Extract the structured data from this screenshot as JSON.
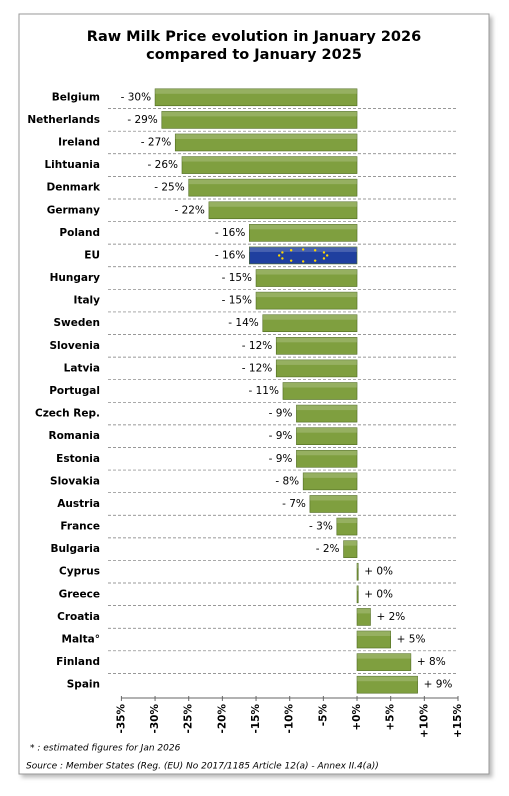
{
  "chart_data": {
    "type": "bar",
    "orientation": "horizontal",
    "title": [
      "Raw Milk Price evolution in January 2026",
      "compared to January 2025"
    ],
    "categories": [
      "Belgium",
      "Netherlands",
      "Ireland",
      "Lihtuania",
      "Denmark",
      "Germany",
      "Poland",
      "EU",
      "Hungary",
      "Italy",
      "Sweden",
      "Slovenia",
      "Latvia",
      "Portugal",
      "Czech Rep.",
      "Romania",
      "Estonia",
      "Slovakia",
      "Austria",
      "France",
      "Bulgaria",
      "Cyprus",
      "Greece",
      "Croatia",
      "Malta°",
      "Finland",
      "Spain"
    ],
    "values": [
      -30,
      -29,
      -27,
      -26,
      -25,
      -22,
      -16,
      -16,
      -15,
      -15,
      -14,
      -12,
      -12,
      -11,
      -9,
      -9,
      -9,
      -8,
      -7,
      -3,
      -2,
      0,
      0,
      2,
      5,
      8,
      9
    ],
    "value_labels": [
      "- 30%",
      "- 29%",
      "- 27%",
      "- 26%",
      "- 25%",
      "- 22%",
      "- 16%",
      "- 16%",
      "- 15%",
      "- 15%",
      "- 14%",
      "- 12%",
      "- 12%",
      "- 11%",
      "- 9%",
      "- 9%",
      "- 9%",
      "- 8%",
      "- 7%",
      "- 3%",
      "- 2%",
      "+ 0%",
      "+ 0%",
      "+ 2%",
      "+ 5%",
      "+ 8%",
      "+ 9%"
    ],
    "color": "#7f9f3f",
    "colors": [
      "#7f9f3f",
      "#7f9f3f",
      "#7f9f3f",
      "#7f9f3f",
      "#7f9f3f",
      "#7f9f3f",
      "#7f9f3f",
      "#1f3f9f",
      "#7f9f3f",
      "#7f9f3f",
      "#7f9f3f",
      "#7f9f3f",
      "#7f9f3f",
      "#7f9f3f",
      "#7f9f3f",
      "#7f9f3f",
      "#7f9f3f",
      "#7f9f3f",
      "#7f9f3f",
      "#7f9f3f",
      "#7f9f3f",
      "#7f9f3f",
      "#7f9f3f",
      "#7f9f3f",
      "#7f9f3f",
      "#7f9f3f",
      "#7f9f3f"
    ],
    "xlim": [
      -35,
      15
    ],
    "xticks": [
      {
        "value": -35,
        "label": "-35%"
      },
      {
        "value": -30,
        "label": "-30%"
      },
      {
        "value": -25,
        "label": "-25%"
      },
      {
        "value": -20,
        "label": "-20%"
      },
      {
        "value": -15,
        "label": "-15%"
      },
      {
        "value": -10,
        "label": "-10%"
      },
      {
        "value": -5,
        "label": "-5%"
      },
      {
        "value": 0,
        "label": "+0%"
      },
      {
        "value": 5,
        "label": "+5%"
      },
      {
        "value": 10,
        "label": "+10%"
      },
      {
        "value": 15,
        "label": "+15%"
      }
    ],
    "grid": true,
    "notes": [
      "* : estimated figures for Jan 2026",
      "Source : Member States (Reg. (EU) No 2017/1185 Article 12(a) - Annex II.4(a))"
    ]
  }
}
